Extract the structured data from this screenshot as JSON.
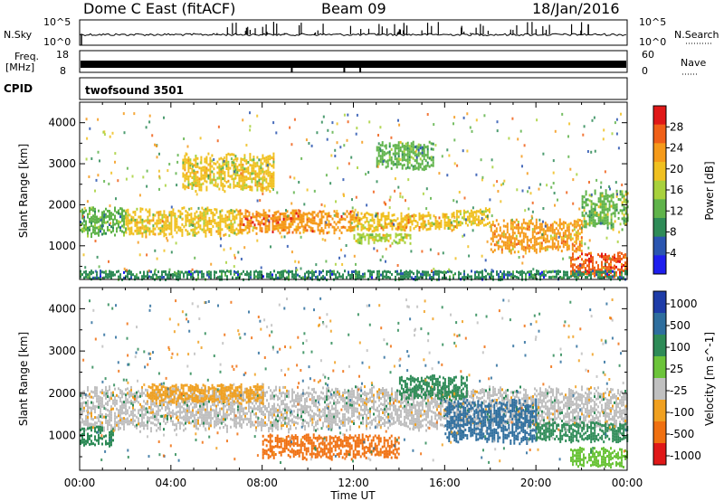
{
  "header": {
    "station": "Dome C East (fitACF)",
    "beam": "Beam 09",
    "date": "18/Jan/2016"
  },
  "strips": {
    "nsky_label": "N.Sky",
    "nsky_ticks": [
      "10^5",
      "10^0"
    ],
    "nsearch_label": "N.Search",
    "freq_label_1": "Freq.",
    "freq_label_2": "[MHz]",
    "freq_ticks": [
      "18",
      "8"
    ],
    "nave_label": "Nave",
    "nave_ticks": [
      "60",
      "0"
    ],
    "cpid_label": "CPID",
    "cpid_value": "twofsound 3501"
  },
  "chart_data": [
    {
      "type": "heatmap",
      "name": "power",
      "xlabel": "Time UT",
      "ylabel": "Slant Range [km]",
      "xlim": [
        "00:00",
        "24:00"
      ],
      "ylim": [
        180,
        4500
      ],
      "x_tick_labels": [
        "00:00",
        "04:00",
        "08:00",
        "12:00",
        "16:00",
        "20:00",
        "00:00"
      ],
      "y_tick_labels": [
        "1000",
        "2000",
        "3000",
        "4000"
      ],
      "colorbar": {
        "label": "Power [dB]",
        "range": [
          0,
          32
        ],
        "tick_labels": [
          "4",
          "8",
          "12",
          "16",
          "20",
          "24",
          "28"
        ],
        "colors": [
          "#1e1eee",
          "#2a55b0",
          "#2e8b57",
          "#5fb34a",
          "#a8d13c",
          "#f0c020",
          "#f59a1a",
          "#f06018",
          "#e01818"
        ]
      },
      "bands": [
        {
          "from_h": 0.0,
          "to_h": 2.0,
          "range_km": [
            1300,
            1900
          ],
          "level": 12
        },
        {
          "from_h": 2.0,
          "to_h": 7.0,
          "range_km": [
            1300,
            1900
          ],
          "level": 18
        },
        {
          "from_h": 7.0,
          "to_h": 12.0,
          "range_km": [
            1350,
            1850
          ],
          "level": 24
        },
        {
          "from_h": 12.0,
          "to_h": 16.5,
          "range_km": [
            1400,
            1800
          ],
          "level": 20
        },
        {
          "from_h": 16.5,
          "to_h": 18.0,
          "range_km": [
            1500,
            1900
          ],
          "level": 18
        },
        {
          "from_h": 18.0,
          "to_h": 22.0,
          "range_km": [
            900,
            1600
          ],
          "level": 22
        },
        {
          "from_h": 22.0,
          "to_h": 24.0,
          "range_km": [
            1500,
            2300
          ],
          "level": 14
        },
        {
          "from_h": 4.5,
          "to_h": 8.5,
          "range_km": [
            2400,
            3200
          ],
          "level": 18
        },
        {
          "from_h": 12.0,
          "to_h": 14.5,
          "range_km": [
            1100,
            1300
          ],
          "level": 16
        },
        {
          "from_h": 13.0,
          "to_h": 15.5,
          "range_km": [
            2900,
            3500
          ],
          "level": 12
        },
        {
          "from_h": 21.5,
          "to_h": 24.0,
          "range_km": [
            300,
            800
          ],
          "level": 28
        },
        {
          "from_h": 0.0,
          "to_h": 24.0,
          "range_km": [
            200,
            400
          ],
          "level": 8
        }
      ]
    },
    {
      "type": "heatmap",
      "name": "velocity",
      "xlabel": "Time UT",
      "ylabel": "Slant Range [km]",
      "xlim": [
        "00:00",
        "24:00"
      ],
      "ylim": [
        180,
        4500
      ],
      "x_tick_labels": [
        "00:00",
        "04:00",
        "08:00",
        "12:00",
        "16:00",
        "20:00",
        "00:00"
      ],
      "y_tick_labels": [
        "1000",
        "2000",
        "3000",
        "4000"
      ],
      "colorbar": {
        "label": "Velocity [m s^-1]",
        "tick_labels": [
          "1000",
          "500",
          "100",
          "25",
          "-25",
          "-100",
          "-500",
          "-1000"
        ],
        "colors": [
          "#1e3ca8",
          "#2e6e9e",
          "#2e8b57",
          "#6cc43a",
          "#c0c0c0",
          "#f0a020",
          "#f07010",
          "#e01818"
        ]
      },
      "bands": [
        {
          "from_h": 0.0,
          "to_h": 24.0,
          "range_km": [
            1200,
            2100
          ],
          "level": "ground"
        },
        {
          "from_h": 0.0,
          "to_h": 1.5,
          "range_km": [
            800,
            1200
          ],
          "level": "100"
        },
        {
          "from_h": 8.0,
          "to_h": 14.0,
          "range_km": [
            500,
            1000
          ],
          "level": "-500"
        },
        {
          "from_h": 14.0,
          "to_h": 17.0,
          "range_km": [
            1900,
            2400
          ],
          "level": "100"
        },
        {
          "from_h": 16.0,
          "to_h": 20.0,
          "range_km": [
            900,
            1800
          ],
          "level": "500"
        },
        {
          "from_h": 20.0,
          "to_h": 24.0,
          "range_km": [
            900,
            1300
          ],
          "level": "100"
        },
        {
          "from_h": 21.5,
          "to_h": 24.0,
          "range_km": [
            300,
            700
          ],
          "level": "25"
        },
        {
          "from_h": 3.0,
          "to_h": 8.0,
          "range_km": [
            1800,
            2200
          ],
          "level": "-100"
        }
      ]
    }
  ]
}
